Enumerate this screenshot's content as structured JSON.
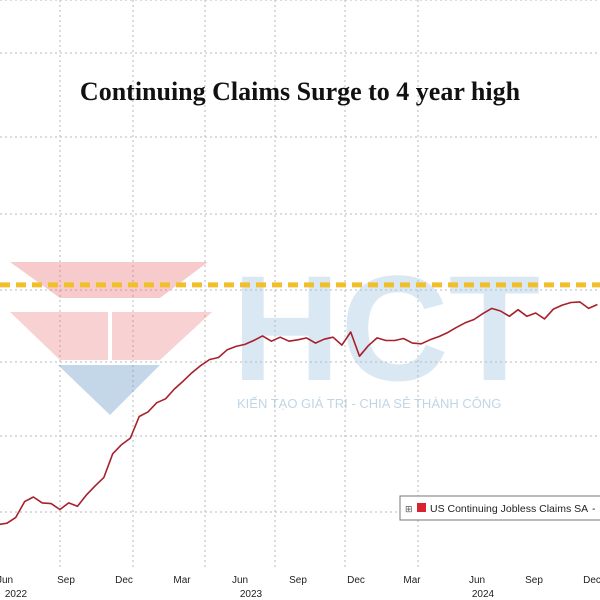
{
  "chart_data": {
    "type": "line",
    "title": "Continuing Claims Surge to 4 year high",
    "xlabel": "",
    "ylabel": "",
    "grid": true,
    "legend_placement": "bottom-right",
    "x_ticks": [
      "Jun",
      "Sep",
      "Dec",
      "Mar",
      "Jun",
      "Sep",
      "Dec",
      "Mar",
      "Jun",
      "Sep",
      "Dec"
    ],
    "x_years": [
      "2022",
      "2023",
      "2024"
    ],
    "series": [
      {
        "name": "US Continuing Jobless Claims SA",
        "color": "#a8202c",
        "x": [
          "2022-05-14",
          "2022-05-28",
          "2022-06-11",
          "2022-06-25",
          "2022-07-09",
          "2022-07-23",
          "2022-08-06",
          "2022-08-20",
          "2022-09-03",
          "2022-09-17",
          "2022-10-01",
          "2022-10-15",
          "2022-10-29",
          "2022-11-12",
          "2022-11-26",
          "2022-12-10",
          "2022-12-24",
          "2023-01-07",
          "2023-01-21",
          "2023-02-04",
          "2023-02-18",
          "2023-03-04",
          "2023-03-18",
          "2023-04-01",
          "2023-04-15",
          "2023-04-29",
          "2023-05-13",
          "2023-05-27",
          "2023-06-10",
          "2023-06-24",
          "2023-07-08",
          "2023-07-22",
          "2023-08-05",
          "2023-08-19",
          "2023-09-02",
          "2023-09-16",
          "2023-09-30",
          "2023-10-14",
          "2023-10-28",
          "2023-11-11",
          "2023-11-25",
          "2023-12-09",
          "2023-12-23",
          "2024-01-06",
          "2024-01-20",
          "2024-02-03",
          "2024-02-17",
          "2024-03-02",
          "2024-03-16",
          "2024-03-30",
          "2024-04-13",
          "2024-04-27",
          "2024-05-11",
          "2024-05-25",
          "2024-06-08",
          "2024-06-22",
          "2024-07-06",
          "2024-07-20",
          "2024-08-03",
          "2024-08-17",
          "2024-08-31",
          "2024-09-14",
          "2024-09-28",
          "2024-10-12",
          "2024-10-26",
          "2024-11-09",
          "2024-11-23",
          "2024-12-07",
          "2024-12-21"
        ],
        "values": [
          1319,
          1321,
          1330,
          1354,
          1361,
          1352,
          1351,
          1342,
          1352,
          1347,
          1364,
          1378,
          1391,
          1427,
          1441,
          1451,
          1484,
          1491,
          1505,
          1511,
          1526,
          1538,
          1551,
          1562,
          1571,
          1574,
          1586,
          1591,
          1594,
          1600,
          1607,
          1599,
          1605,
          1599,
          1601,
          1604,
          1596,
          1602,
          1605,
          1593,
          1613,
          1576,
          1592,
          1604,
          1600,
          1600,
          1603,
          1596,
          1595,
          1601,
          1606,
          1612,
          1620,
          1627,
          1632,
          1641,
          1649,
          1645,
          1637,
          1647,
          1637,
          1642,
          1633,
          1648,
          1654,
          1658,
          1659,
          1649,
          1655
        ]
      }
    ],
    "reference_line": {
      "value": 1685,
      "color": "#f2bf2c"
    }
  },
  "legend": {
    "label": "US Continuing Jobless Claims SA",
    "suffix": "-"
  },
  "watermark": {
    "logo_text": "HCT",
    "tagline": "KIẾN TẠO GIÁ TRỊ - CHIA SẺ THÀNH CÔNG"
  }
}
